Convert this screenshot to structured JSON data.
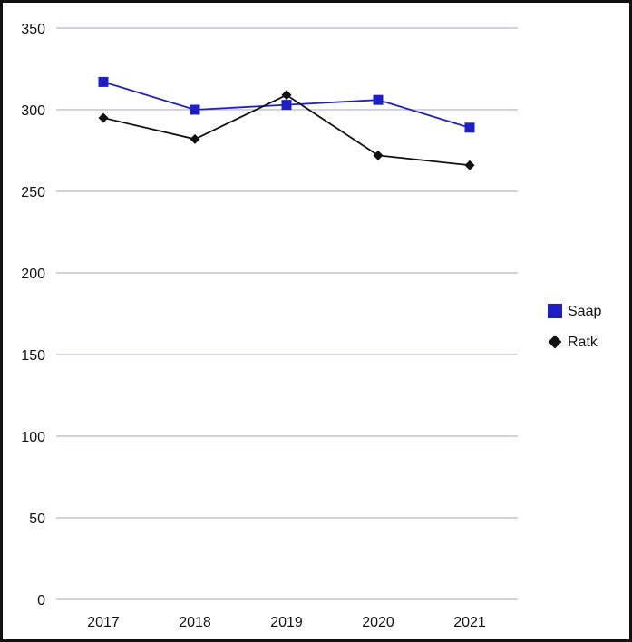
{
  "chart_data": {
    "type": "line",
    "title": "",
    "xlabel": "",
    "ylabel": "",
    "categories": [
      "2017",
      "2018",
      "2019",
      "2020",
      "2021"
    ],
    "ylim": [
      0,
      350
    ],
    "yticks": [
      0,
      50,
      100,
      150,
      200,
      250,
      300,
      350
    ],
    "grid": true,
    "legend_position": "right",
    "series": [
      {
        "name": "Saap",
        "values": [
          317,
          300,
          303,
          306,
          289
        ],
        "color": "#1f1fc8",
        "marker": "square"
      },
      {
        "name": "Ratk",
        "values": [
          295,
          282,
          309,
          272,
          266
        ],
        "color": "#111111",
        "marker": "diamond"
      }
    ]
  }
}
